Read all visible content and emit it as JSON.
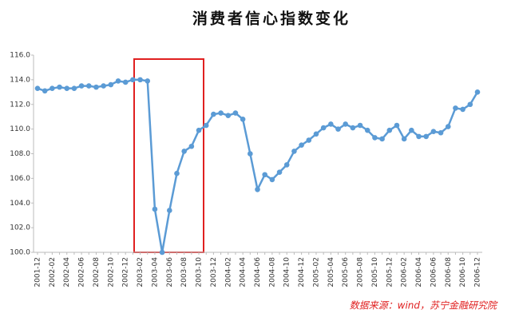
{
  "chart_data": {
    "type": "line",
    "title": "消费者信心指数变化",
    "source": "数据来源：wind，苏宁金融研究院",
    "color": "#5b9bd5",
    "categories": [
      "2001-12",
      null,
      "2002-02",
      null,
      "2002-04",
      null,
      "2002-06",
      null,
      "2002-08",
      null,
      "2002-10",
      null,
      "2002-12",
      null,
      "2003-02",
      null,
      "2003-04",
      null,
      "2003-06",
      null,
      "2003-08",
      null,
      "2003-10",
      null,
      "2003-12",
      null,
      "2004-02",
      null,
      "2004-04",
      null,
      "2004-06",
      null,
      "2004-08",
      null,
      "2004-10",
      null,
      "2004-12",
      null,
      "2005-02",
      null,
      "2005-04",
      null,
      "2005-06",
      null,
      "2005-08",
      null,
      "2005-10",
      null,
      "2005-12",
      null,
      "2006-02",
      null,
      "2006-04",
      null,
      "2006-06",
      null,
      "2006-08",
      null,
      "2006-10",
      null,
      "2006-12"
    ],
    "values": [
      113.3,
      113.1,
      113.3,
      113.4,
      113.3,
      113.3,
      113.5,
      113.5,
      113.4,
      113.5,
      113.6,
      113.9,
      113.8,
      114.0,
      114.0,
      113.9,
      103.5,
      100.0,
      103.4,
      106.4,
      108.2,
      108.6,
      109.9,
      110.3,
      111.2,
      111.3,
      111.1,
      111.3,
      110.8,
      108.0,
      105.1,
      106.3,
      105.9,
      106.5,
      107.1,
      108.2,
      108.7,
      109.1,
      109.6,
      110.1,
      110.4,
      110.0,
      110.4,
      110.1,
      110.3,
      109.9,
      109.3,
      109.2,
      109.9,
      110.3,
      109.2,
      109.9,
      109.4,
      109.4,
      109.8,
      109.7,
      110.2,
      111.7,
      111.6,
      112.0,
      113.0
    ],
    "ylim": [
      100,
      116
    ],
    "yticks": [
      {
        "value": 100,
        "label": "100.0"
      },
      {
        "value": 102,
        "label": "102.0"
      },
      {
        "value": 104,
        "label": "104.0"
      },
      {
        "value": 106,
        "label": "106.0"
      },
      {
        "value": 108,
        "label": "108.0"
      },
      {
        "value": 110,
        "label": "110.0"
      },
      {
        "value": 112,
        "label": "112.0"
      },
      {
        "value": 114,
        "label": "114.0"
      },
      {
        "value": 116,
        "label": "116.0"
      }
    ],
    "grid": false
  }
}
